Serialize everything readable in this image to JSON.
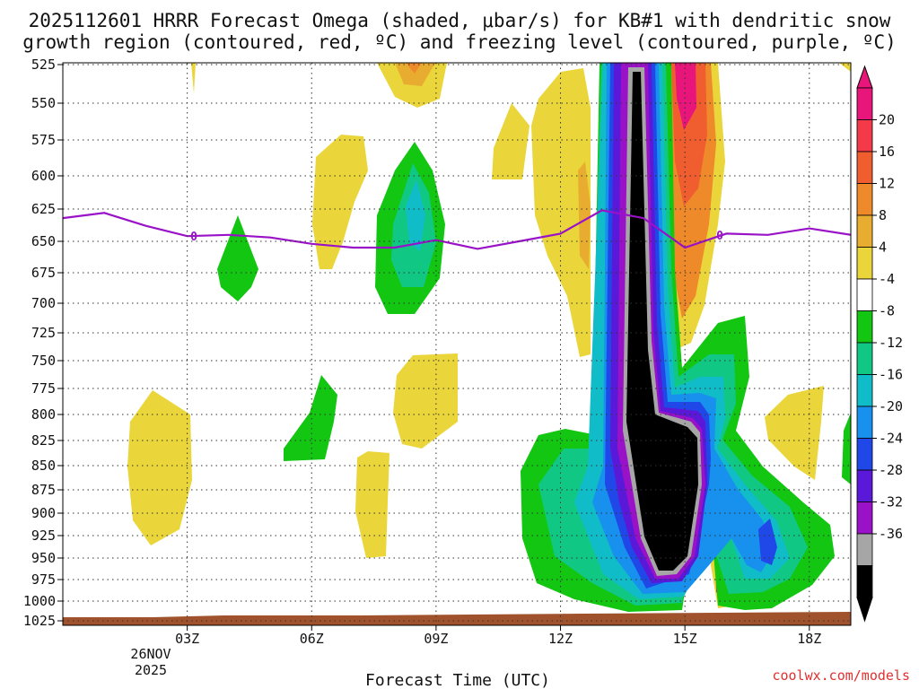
{
  "chart_data": {
    "type": "heatmap",
    "title_line1": "2025112601 HRRR Forecast Omega (shaded, μbar/s) for KB#1 with dendritic snow",
    "title_line2": "growth region (contoured, red, ºC) and freezing level (contoured, purple, ºC)",
    "xlabel": "Forecast Time (UTC)",
    "credit": "coolwx.com/models",
    "x_range_hours": [
      0,
      19
    ],
    "x_ticks": [
      {
        "hour": 3,
        "label": "03Z"
      },
      {
        "hour": 6,
        "label": "06Z"
      },
      {
        "hour": 9,
        "label": "09Z"
      },
      {
        "hour": 12,
        "label": "12Z"
      },
      {
        "hour": 15,
        "label": "15Z"
      },
      {
        "hour": 18,
        "label": "18Z"
      }
    ],
    "date_label": [
      "26NOV",
      "2025"
    ],
    "y_ticks": [
      "525",
      "550",
      "575",
      "600",
      "625",
      "650",
      "675",
      "700",
      "725",
      "750",
      "775",
      "800",
      "825",
      "850",
      "875",
      "900",
      "925",
      "950",
      "975",
      "1000",
      "1025"
    ],
    "colorbar": {
      "labels": [
        "20",
        "16",
        "12",
        "8",
        "4",
        "-4",
        "-8",
        "-12",
        "-16",
        "-20",
        "-24",
        "-28",
        "-32",
        "-36"
      ],
      "colors": [
        "#e8157a",
        "#f43a4a",
        "#f05e30",
        "#ef8a2a",
        "#e8ad30",
        "#ead63a",
        "#ffffff",
        "#12c612",
        "#10c884",
        "#10bcc8",
        "#1890ee",
        "#2048e8",
        "#5a18d8",
        "#9a12c8",
        "#a6a6a6",
        "#000000"
      ]
    },
    "freezing_level": {
      "label": "0",
      "points": [
        [
          0,
          632
        ],
        [
          1,
          628
        ],
        [
          2,
          638
        ],
        [
          3,
          646
        ],
        [
          4,
          645
        ],
        [
          5,
          647
        ],
        [
          6,
          652
        ],
        [
          7,
          655
        ],
        [
          8,
          655
        ],
        [
          9,
          649
        ],
        [
          10,
          656
        ],
        [
          11,
          650
        ],
        [
          12,
          644
        ],
        [
          13,
          626
        ],
        [
          14,
          632
        ],
        [
          15,
          655
        ],
        [
          16,
          644
        ],
        [
          17,
          645
        ],
        [
          18,
          640
        ],
        [
          19,
          645
        ]
      ]
    }
  }
}
